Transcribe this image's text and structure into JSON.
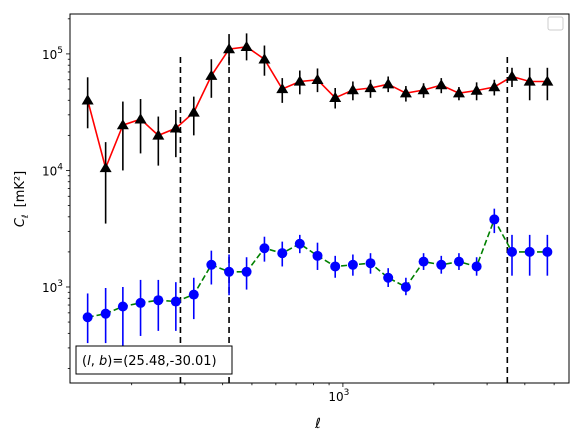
{
  "chart_data": {
    "type": "scatter",
    "xscale": "log",
    "yscale": "log",
    "xlim": [
      125,
      5600
    ],
    "ylim": [
      150,
      220000
    ],
    "xlabel": "ℓ",
    "ylabel_main": "C",
    "ylabel_sub": "ℓ",
    "ylabel_unit": "[mK²]",
    "x_tick_labels": [
      {
        "value": 1000,
        "mantissa": "10",
        "exp": "3"
      }
    ],
    "y_tick_labels": [
      {
        "value": 1000,
        "mantissa": "10",
        "exp": "3"
      },
      {
        "value": 10000,
        "mantissa": "10",
        "exp": "4"
      },
      {
        "value": 100000,
        "mantissa": "10",
        "exp": "5"
      }
    ],
    "vlines": [
      {
        "x": 290,
        "ymax": 100000
      },
      {
        "x": 420,
        "ymax": 100000
      },
      {
        "x": 3500,
        "ymax": 100000
      }
    ],
    "annotation": "(l, b)=(25.48,-30.01)",
    "annotation_parts": {
      "open": "(",
      "l": "l",
      "sep": ", ",
      "b": "b",
      "close": ")",
      "value": "=(25.48,-30.01)"
    },
    "series": [
      {
        "line_color": "#ff0000",
        "marker_color": "#000000",
        "marker": "triangle",
        "line_style": "solid",
        "x": [
          143,
          164,
          187,
          214,
          245,
          280,
          321,
          367,
          420,
          480,
          550,
          630,
          720,
          824,
          943,
          1079,
          1234,
          1412,
          1616,
          1849,
          2116,
          2421,
          2770,
          3170,
          3627,
          4150,
          4749
        ],
        "y": [
          40000,
          10500,
          24500,
          27500,
          20000,
          23000,
          31500,
          65000,
          110000,
          115000,
          90000,
          50000,
          58000,
          60000,
          42000,
          49000,
          51000,
          55000,
          46000,
          49000,
          54000,
          46000,
          48500,
          52000,
          64000,
          58000,
          58000
        ],
        "err_low": [
          23000,
          3500,
          10000,
          14000,
          11000,
          13000,
          20000,
          42000,
          80000,
          88000,
          65000,
          38000,
          45000,
          47000,
          34000,
          40000,
          42000,
          47000,
          39000,
          42000,
          46000,
          40000,
          40000,
          44000,
          52000,
          40000,
          40000
        ],
        "err_high": [
          63000,
          17500,
          39000,
          41000,
          29000,
          33000,
          43000,
          90000,
          148000,
          150000,
          118000,
          62000,
          72000,
          75000,
          51000,
          58000,
          60000,
          64000,
          53000,
          56000,
          62000,
          52000,
          57000,
          60000,
          76000,
          76000,
          76000
        ]
      },
      {
        "line_color": "#008000",
        "marker_color": "#0000ff",
        "marker": "circle",
        "line_style": "dashed",
        "x": [
          143,
          164,
          187,
          214,
          245,
          280,
          321,
          367,
          420,
          480,
          550,
          630,
          720,
          824,
          943,
          1079,
          1234,
          1412,
          1616,
          1849,
          2116,
          2421,
          2770,
          3170,
          3627,
          4150,
          4749
        ],
        "y": [
          550,
          590,
          680,
          730,
          770,
          750,
          860,
          1550,
          1350,
          1350,
          2150,
          1950,
          2350,
          1850,
          1500,
          1550,
          1600,
          1200,
          1000,
          1650,
          1550,
          1650,
          1500,
          3800,
          2000,
          2000,
          2000
        ],
        "err_low": [
          330,
          330,
          300,
          380,
          420,
          420,
          530,
          1050,
          850,
          950,
          1650,
          1500,
          1950,
          1400,
          1200,
          1250,
          1300,
          1000,
          850,
          1400,
          1300,
          1400,
          1250,
          2900,
          1250,
          1250,
          1250
        ],
        "err_high": [
          880,
          980,
          1000,
          1150,
          1150,
          1100,
          1200,
          2050,
          1900,
          1800,
          2700,
          2450,
          2800,
          2400,
          1850,
          1900,
          1950,
          1450,
          1200,
          1950,
          1850,
          1950,
          1800,
          4700,
          2800,
          2800,
          2800
        ]
      }
    ]
  }
}
